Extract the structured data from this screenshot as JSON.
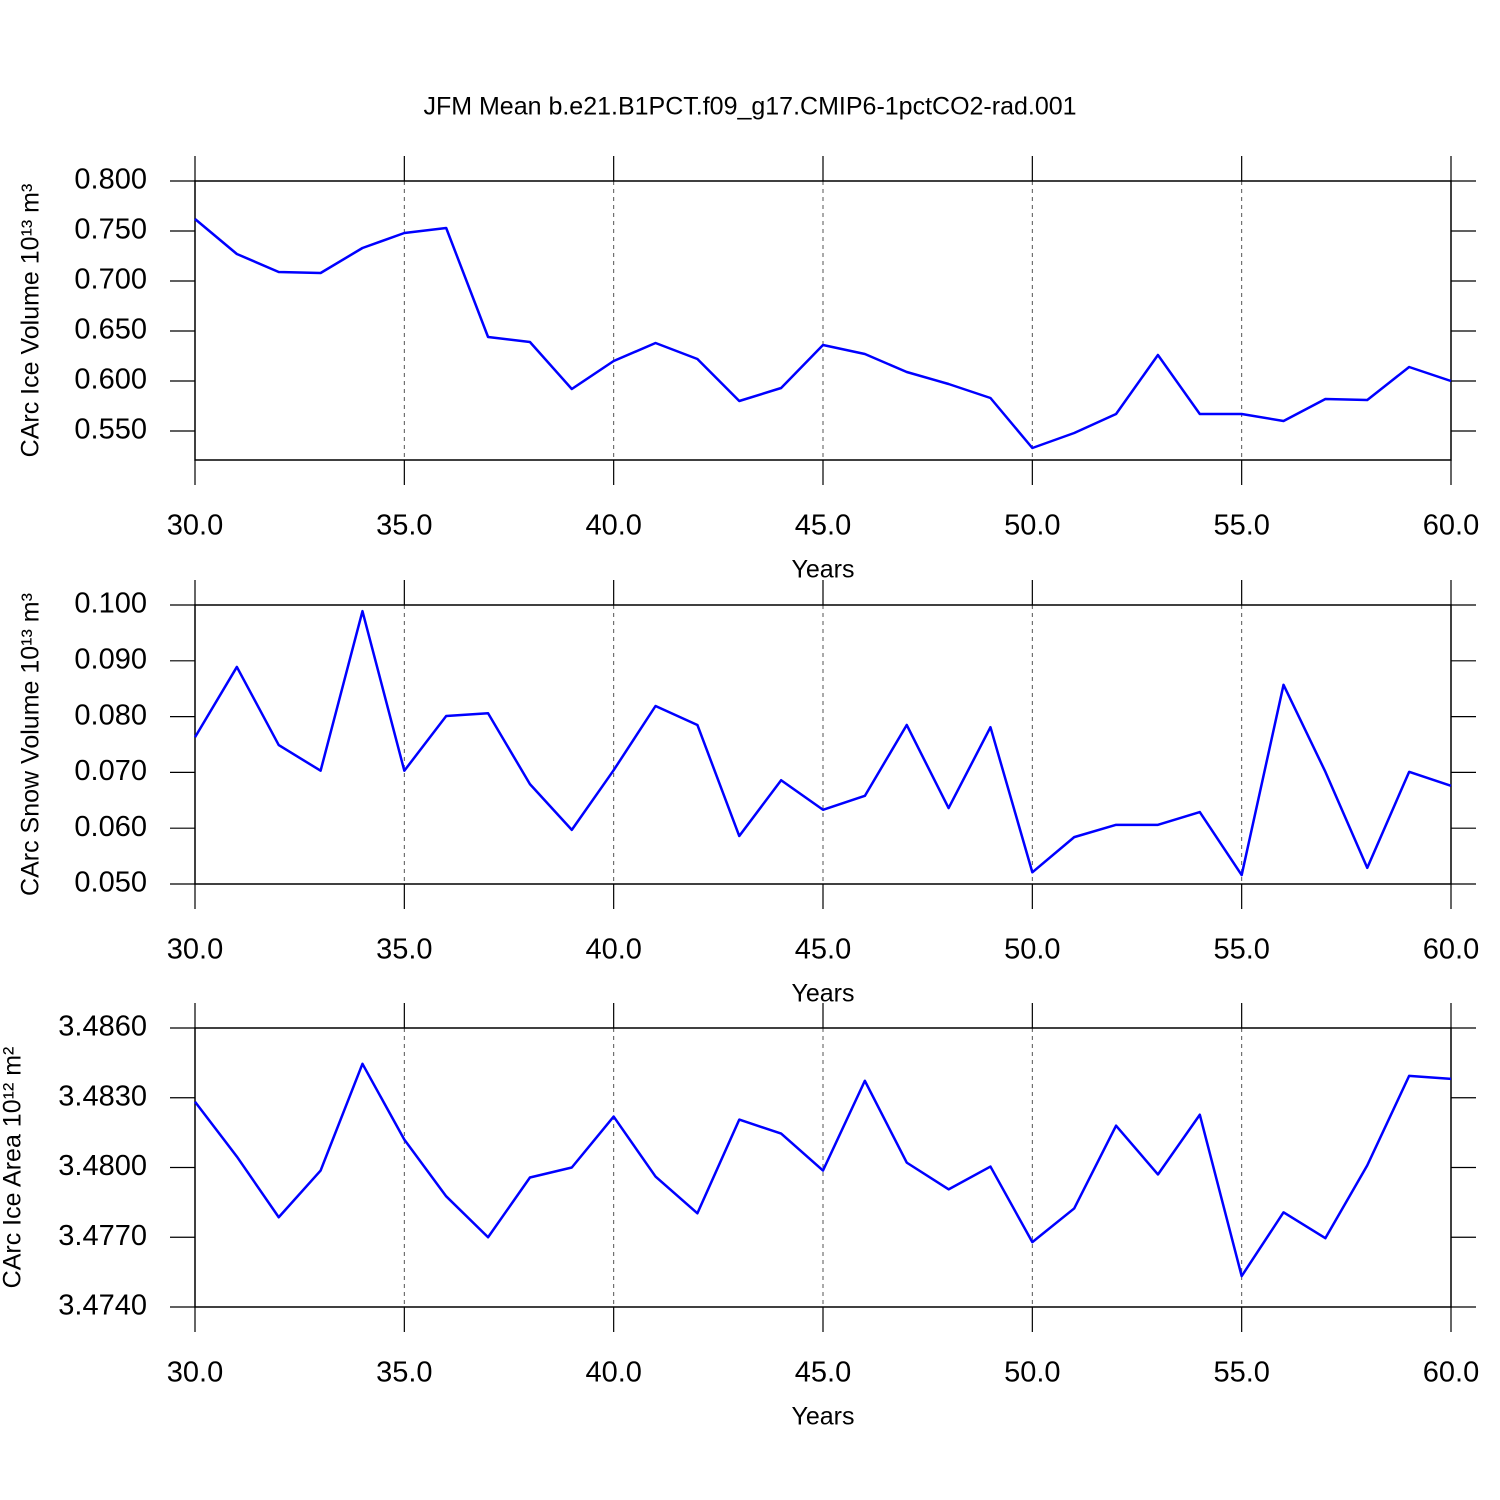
{
  "chart_data": [
    {
      "type": "line",
      "title": "JFM Mean b.e21.B1PCT.f09_g17.CMIP6-1pctCO2-rad.001",
      "ylabel": "CArc Ice Volume 10¹³ m³",
      "xlabel": "Years",
      "color": "#0000ff",
      "grid": true,
      "x": [
        30,
        31,
        32,
        33,
        34,
        35,
        36,
        37,
        38,
        39,
        40,
        41,
        42,
        43,
        44,
        45,
        46,
        47,
        48,
        49,
        50,
        51,
        52,
        53,
        54,
        55,
        56,
        57,
        58,
        59,
        60
      ],
      "values": [
        0.762,
        0.727,
        0.709,
        0.708,
        0.733,
        0.748,
        0.753,
        0.644,
        0.639,
        0.592,
        0.62,
        0.638,
        0.622,
        0.58,
        0.593,
        0.636,
        0.627,
        0.609,
        0.597,
        0.583,
        0.533,
        0.548,
        0.567,
        0.626,
        0.567,
        0.567,
        0.56,
        0.582,
        0.581,
        0.614,
        0.6
      ],
      "xlim": [
        30,
        60
      ],
      "xticks": [
        {
          "value": 30,
          "label": "30.0"
        },
        {
          "value": 35,
          "label": "35.0"
        },
        {
          "value": 40,
          "label": "40.0"
        },
        {
          "value": 45,
          "label": "45.0"
        },
        {
          "value": 50,
          "label": "50.0"
        },
        {
          "value": 55,
          "label": "55.0"
        },
        {
          "value": 60,
          "label": "60.0"
        }
      ],
      "ylim": [
        0.521,
        0.8
      ],
      "yticks": [
        {
          "value": 0.55,
          "label": "0.550"
        },
        {
          "value": 0.6,
          "label": "0.600"
        },
        {
          "value": 0.65,
          "label": "0.650"
        },
        {
          "value": 0.7,
          "label": "0.700"
        },
        {
          "value": 0.75,
          "label": "0.750"
        },
        {
          "value": 0.8,
          "label": "0.800"
        }
      ]
    },
    {
      "type": "line",
      "ylabel": "CArc Snow Volume 10¹³ m³",
      "xlabel": "Years",
      "color": "#0000ff",
      "grid": true,
      "x": [
        30,
        31,
        32,
        33,
        34,
        35,
        36,
        37,
        38,
        39,
        40,
        41,
        42,
        43,
        44,
        45,
        46,
        47,
        48,
        49,
        50,
        51,
        52,
        53,
        54,
        55,
        56,
        57,
        58,
        59,
        60
      ],
      "values": [
        0.0763,
        0.0889,
        0.0749,
        0.0703,
        0.0989,
        0.0703,
        0.0801,
        0.0806,
        0.0679,
        0.0597,
        0.0704,
        0.0819,
        0.0785,
        0.0586,
        0.0686,
        0.0633,
        0.0658,
        0.0785,
        0.0636,
        0.0781,
        0.0521,
        0.0584,
        0.0606,
        0.0606,
        0.0629,
        0.0516,
        0.0857,
        0.0701,
        0.0529,
        0.0701,
        0.0676
      ],
      "xlim": [
        30,
        60
      ],
      "xticks": [
        {
          "value": 30,
          "label": "30.0"
        },
        {
          "value": 35,
          "label": "35.0"
        },
        {
          "value": 40,
          "label": "40.0"
        },
        {
          "value": 45,
          "label": "45.0"
        },
        {
          "value": 50,
          "label": "50.0"
        },
        {
          "value": 55,
          "label": "55.0"
        },
        {
          "value": 60,
          "label": "60.0"
        }
      ],
      "ylim": [
        0.05,
        0.1
      ],
      "yticks": [
        {
          "value": 0.05,
          "label": "0.050"
        },
        {
          "value": 0.06,
          "label": "0.060"
        },
        {
          "value": 0.07,
          "label": "0.070"
        },
        {
          "value": 0.08,
          "label": "0.080"
        },
        {
          "value": 0.09,
          "label": "0.090"
        },
        {
          "value": 0.1,
          "label": "0.100"
        }
      ]
    },
    {
      "type": "line",
      "ylabel": "CArc Ice Area 10¹² m²",
      "xlabel": "Years",
      "color": "#0000ff",
      "grid": true,
      "x": [
        30,
        31,
        32,
        33,
        34,
        35,
        36,
        37,
        38,
        39,
        40,
        41,
        42,
        43,
        44,
        45,
        46,
        47,
        48,
        49,
        50,
        51,
        52,
        53,
        54,
        55,
        56,
        57,
        58,
        59,
        60
      ],
      "values": [
        3.48283,
        3.48047,
        3.47786,
        3.47987,
        3.48446,
        3.4812,
        3.47876,
        3.477,
        3.47957,
        3.48,
        3.48219,
        3.47961,
        3.47803,
        3.48206,
        3.48146,
        3.47987,
        3.48373,
        3.48021,
        3.47906,
        3.48004,
        3.47679,
        3.47824,
        3.4818,
        3.4797,
        3.48227,
        3.47533,
        3.47807,
        3.47696,
        3.48009,
        3.48394,
        3.48381
      ],
      "xlim": [
        30,
        60
      ],
      "xticks": [
        {
          "value": 30,
          "label": "30.0"
        },
        {
          "value": 35,
          "label": "35.0"
        },
        {
          "value": 40,
          "label": "40.0"
        },
        {
          "value": 45,
          "label": "45.0"
        },
        {
          "value": 50,
          "label": "50.0"
        },
        {
          "value": 55,
          "label": "55.0"
        },
        {
          "value": 60,
          "label": "60.0"
        }
      ],
      "ylim": [
        3.474,
        3.486
      ],
      "yticks": [
        {
          "value": 3.474,
          "label": "3.4740"
        },
        {
          "value": 3.477,
          "label": "3.4770"
        },
        {
          "value": 3.48,
          "label": "3.4800"
        },
        {
          "value": 3.483,
          "label": "3.4830"
        },
        {
          "value": 3.486,
          "label": "3.4860"
        }
      ]
    }
  ]
}
